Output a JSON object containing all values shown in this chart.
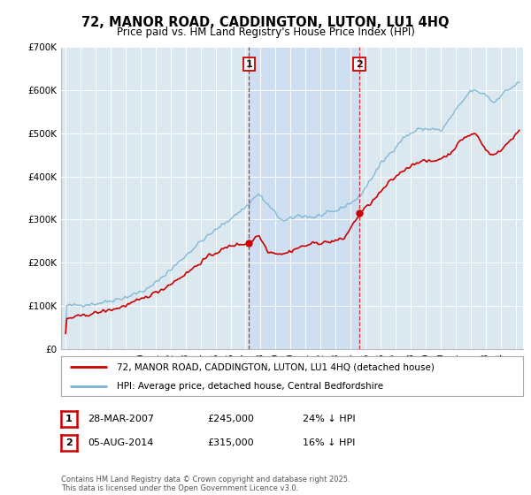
{
  "title": "72, MANOR ROAD, CADDINGTON, LUTON, LU1 4HQ",
  "subtitle": "Price paid vs. HM Land Registry's House Price Index (HPI)",
  "footnote": "Contains HM Land Registry data © Crown copyright and database right 2025.\nThis data is licensed under the Open Government Licence v3.0.",
  "legend_line1": "72, MANOR ROAD, CADDINGTON, LUTON, LU1 4HQ (detached house)",
  "legend_line2": "HPI: Average price, detached house, Central Bedfordshire",
  "sale1_label": "1",
  "sale1_date": "28-MAR-2007",
  "sale1_price": "£245,000",
  "sale1_hpi": "24% ↓ HPI",
  "sale2_label": "2",
  "sale2_date": "05-AUG-2014",
  "sale2_price": "£315,000",
  "sale2_hpi": "16% ↓ HPI",
  "sale1_year": 2007.23,
  "sale2_year": 2014.59,
  "sale1_price_val": 245000,
  "sale2_price_val": 315000,
  "hpi_color": "#7ab3d4",
  "price_color": "#cc0000",
  "vline_color": "#cc0000",
  "background_plot": "#dce8f0",
  "shade_color": "#ccdff0",
  "ylim": [
    0,
    700000
  ],
  "yticks": [
    0,
    100000,
    200000,
    300000,
    400000,
    500000,
    600000,
    700000
  ],
  "ytick_labels": [
    "£0",
    "£100K",
    "£200K",
    "£300K",
    "£400K",
    "£500K",
    "£600K",
    "£700K"
  ],
  "xlim_start": 1994.7,
  "xlim_end": 2025.5
}
